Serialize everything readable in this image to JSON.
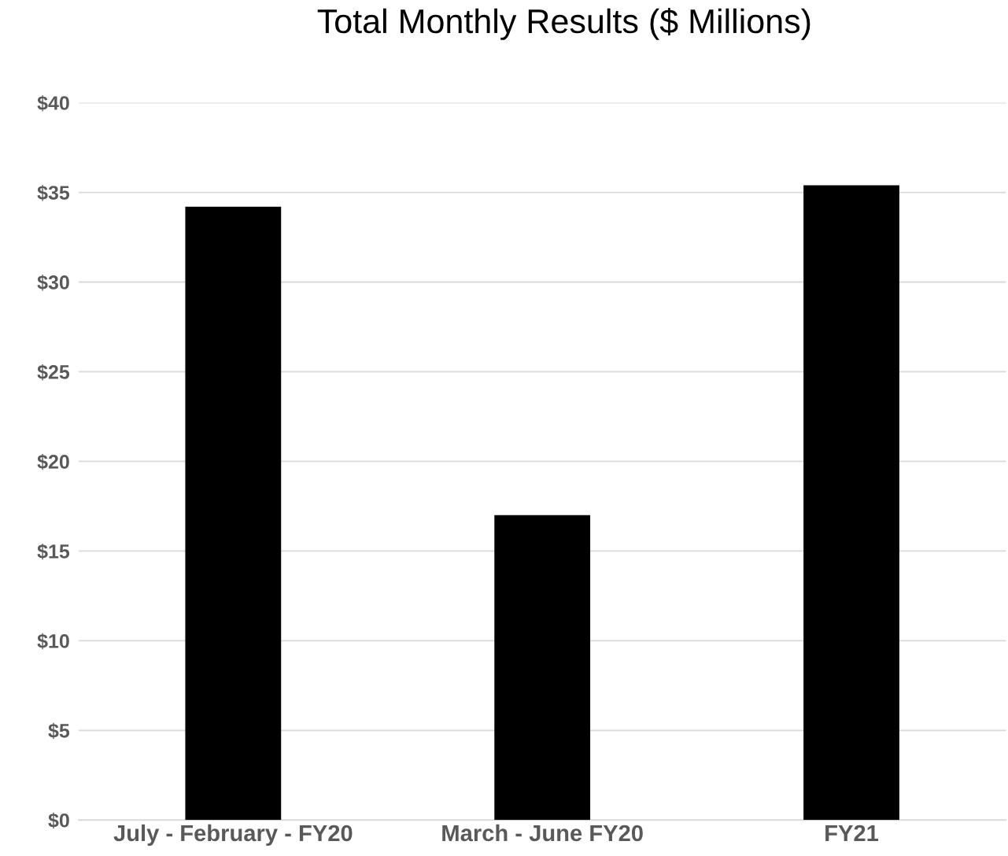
{
  "chart_data": {
    "type": "bar",
    "title": "Total Monthly Results ($ Millions)",
    "categories": [
      "July - February - FY20",
      "March - June FY20",
      "FY21"
    ],
    "values": [
      34.2,
      17.0,
      35.4
    ],
    "color": "#000000",
    "ylim": [
      0,
      40
    ],
    "yticks": [
      {
        "value": 0,
        "label": "$0"
      },
      {
        "value": 5,
        "label": "$5"
      },
      {
        "value": 10,
        "label": "$10"
      },
      {
        "value": 15,
        "label": "$15"
      },
      {
        "value": 20,
        "label": "$20"
      },
      {
        "value": 25,
        "label": "$25"
      },
      {
        "value": 30,
        "label": "$30"
      },
      {
        "value": 35,
        "label": "$35"
      },
      {
        "value": 40,
        "label": "$40"
      }
    ],
    "grid": "y",
    "legend": false
  }
}
